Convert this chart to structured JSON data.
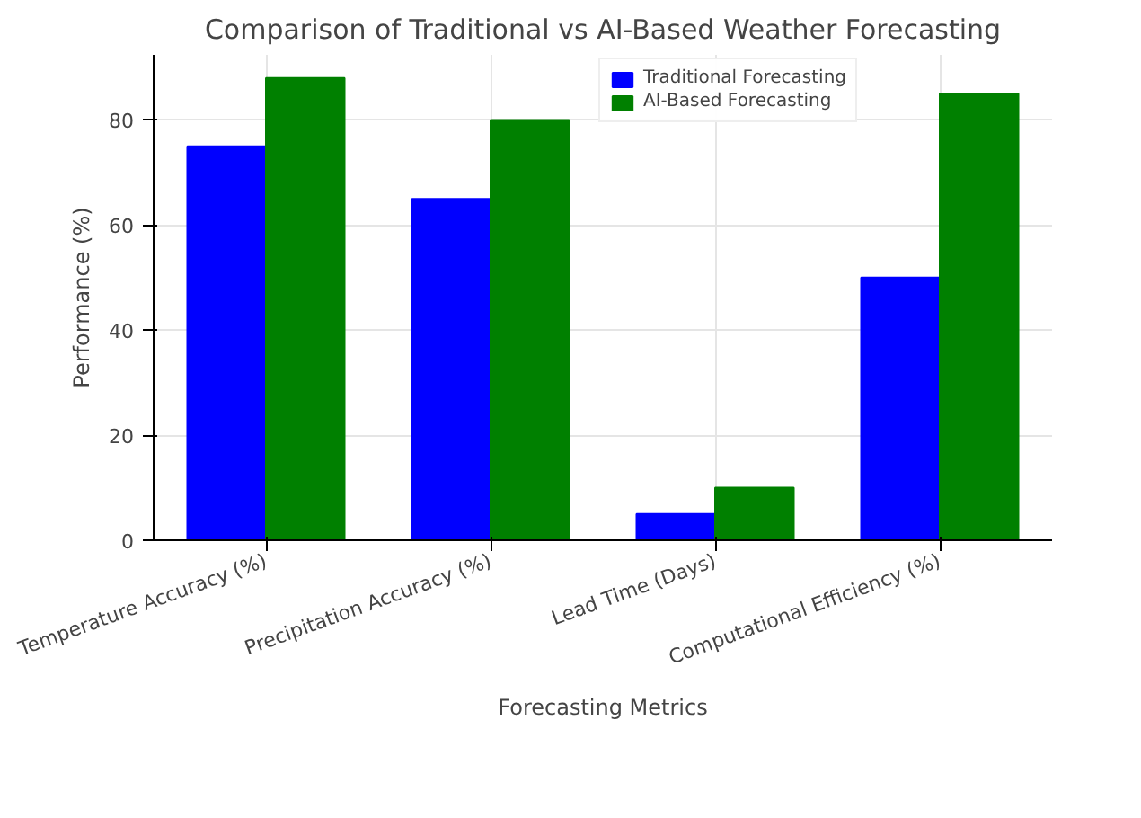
{
  "chart_data": {
    "type": "bar",
    "title": "Comparison of Traditional vs AI-Based Weather Forecasting",
    "xlabel": "Forecasting Metrics",
    "ylabel": "Performance (%)",
    "categories": [
      "Temperature Accuracy (%)",
      "Precipitation Accuracy (%)",
      "Lead Time (Days)",
      "Computational Efficiency (%)"
    ],
    "series": [
      {
        "name": "Traditional Forecasting",
        "color": "#0000ff",
        "values": [
          75,
          65,
          5,
          50
        ]
      },
      {
        "name": "AI-Based Forecasting",
        "color": "#008000",
        "values": [
          88,
          80,
          10,
          85
        ]
      }
    ],
    "ylim": [
      0,
      92.4
    ],
    "yticks": [
      0,
      20,
      40,
      60,
      80
    ],
    "grid": true,
    "legend": "top"
  }
}
